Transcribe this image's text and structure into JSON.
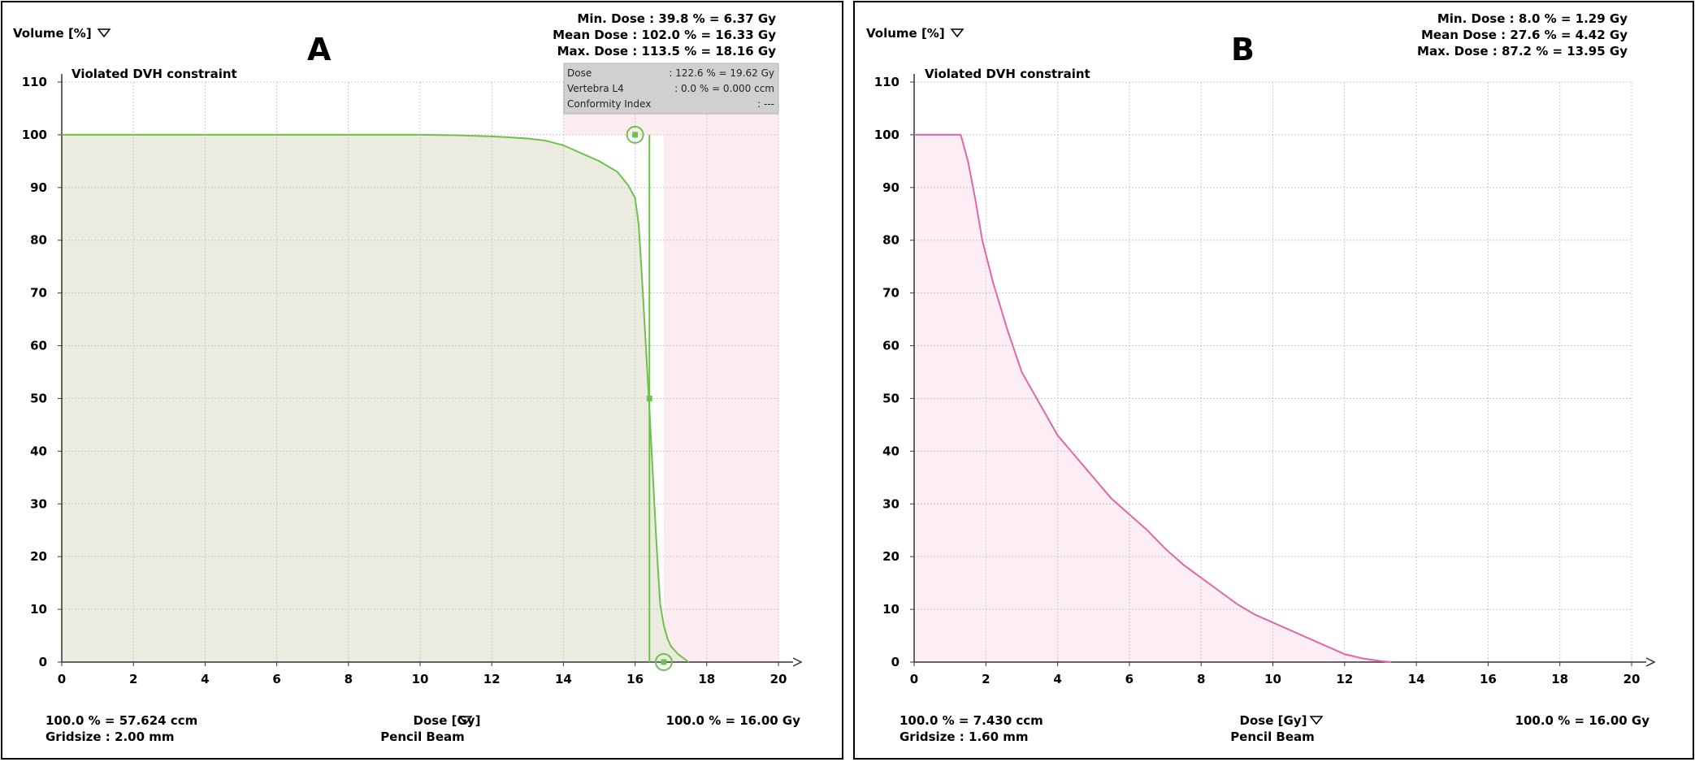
{
  "chart_data": [
    {
      "type": "line",
      "panel_label": "A",
      "title": "",
      "ylabel": "Volume [%]",
      "xlabel": "Dose [Gy]",
      "xlabel_sub": "Pencil Beam",
      "xlim": [
        0,
        20
      ],
      "ylim": [
        0,
        110
      ],
      "xticks": [
        "0",
        "2",
        "4",
        "6",
        "8",
        "10",
        "12",
        "14",
        "16",
        "18",
        "20"
      ],
      "yticks": [
        "0",
        "10",
        "20",
        "30",
        "40",
        "50",
        "60",
        "70",
        "80",
        "90",
        "100",
        "110"
      ],
      "grid": true,
      "violation_label": "Violated DVH constraint",
      "stats": {
        "min": "Min. Dose : 39.8 % = 6.37 Gy",
        "mean": "Mean Dose : 102.0 % = 16.33 Gy",
        "max": "Max. Dose : 113.5 % = 18.16 Gy"
      },
      "bottom_left": [
        "100.0 % = 57.624 ccm",
        "Gridsize : 2.00 mm"
      ],
      "bottom_right": "100.0 % = 16.00 Gy",
      "tooltip": {
        "row1_label": "Dose",
        "row1_value": ": 122.6 % = 19.62 Gy",
        "row2_label": "Vertebra L4",
        "row2_value": ": 0.0 % = 0.000 ccm",
        "row3_label": "Conformity Index",
        "row3_value": ": ---"
      },
      "series": [
        {
          "color": "#6cc24a",
          "fill": "#ecebe0",
          "x": [
            0,
            10,
            11,
            12,
            13,
            13.5,
            14,
            14.5,
            15,
            15.5,
            15.8,
            16.0,
            16.1,
            16.2,
            16.3,
            16.4,
            16.5,
            16.6,
            16.7,
            16.8,
            16.9,
            17.0,
            17.2,
            17.4,
            17.5
          ],
          "y": [
            100,
            100,
            99.9,
            99.7,
            99.3,
            98.9,
            98.0,
            96.5,
            95.0,
            93.0,
            90.5,
            88.0,
            83.0,
            72.0,
            60.0,
            48.0,
            35.0,
            22.0,
            11.0,
            7.0,
            4.5,
            3.0,
            1.5,
            0.5,
            0
          ]
        }
      ],
      "constraint_markers": {
        "upper_point": [
          16.0,
          100
        ],
        "mid_point": [
          16.4,
          50
        ],
        "lower_point": [
          16.8,
          0
        ],
        "vline_x": 16.4,
        "pink_region_start": 16.8,
        "pink_top_start": 14.0
      }
    },
    {
      "type": "line",
      "panel_label": "B",
      "title": "",
      "ylabel": "Volume [%]",
      "xlabel": "Dose [Gy]",
      "xlabel_sub": "Pencil Beam",
      "xlim": [
        0,
        20
      ],
      "ylim": [
        0,
        110
      ],
      "xticks": [
        "0",
        "2",
        "4",
        "6",
        "8",
        "10",
        "12",
        "14",
        "16",
        "18",
        "20"
      ],
      "yticks": [
        "0",
        "10",
        "20",
        "30",
        "40",
        "50",
        "60",
        "70",
        "80",
        "90",
        "100",
        "110"
      ],
      "grid": true,
      "violation_label": "Violated DVH constraint",
      "stats": {
        "min": "Min. Dose : 8.0 % = 1.29 Gy",
        "mean": "Mean Dose : 27.6 % = 4.42 Gy",
        "max": "Max. Dose : 87.2 % = 13.95 Gy"
      },
      "bottom_left": [
        "100.0 % = 7.430 ccm",
        "Gridsize : 1.60 mm"
      ],
      "bottom_right": "100.0 % = 16.00 Gy",
      "series": [
        {
          "color": "#e066a8",
          "fill": "#fdeef5",
          "x": [
            0,
            1.3,
            1.5,
            1.7,
            1.9,
            2.2,
            2.6,
            3.0,
            3.5,
            4.0,
            4.5,
            5.0,
            5.5,
            6.0,
            6.5,
            7.0,
            7.5,
            8.0,
            8.5,
            9.0,
            9.5,
            10.0,
            10.5,
            11.0,
            11.5,
            12.0,
            12.5,
            13.0,
            13.3
          ],
          "y": [
            100,
            100,
            95,
            88,
            80,
            72,
            63,
            55,
            49,
            43,
            39,
            35,
            31,
            28,
            25,
            21.5,
            18.5,
            16,
            13.5,
            11,
            9,
            7.5,
            6,
            4.5,
            3,
            1.5,
            0.7,
            0.2,
            0
          ]
        }
      ]
    }
  ]
}
